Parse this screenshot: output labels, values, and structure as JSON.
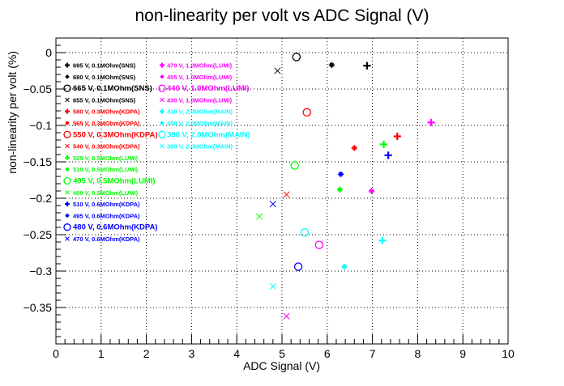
{
  "chart_data": {
    "type": "scatter",
    "title": "non-linearity per volt vs ADC Signal (V)",
    "xlabel": "ADC Signal (V)",
    "ylabel": "non-linearity per volt (%)",
    "xlim": [
      0,
      10
    ],
    "ylim": [
      -0.4,
      0.02
    ],
    "x_ticks": [
      "0",
      "1",
      "2",
      "3",
      "4",
      "5",
      "6",
      "7",
      "8",
      "9",
      "10"
    ],
    "y_ticks": [
      "0",
      "−0.05",
      "−0.1",
      "−0.15",
      "−0.2",
      "−0.25",
      "−0.3",
      "−0.35"
    ],
    "y_tick_values": [
      0,
      -0.05,
      -0.1,
      -0.15,
      -0.2,
      -0.25,
      -0.3,
      -0.35
    ],
    "grid": true,
    "series": [
      {
        "name": "695 V, 0.1MOhm(SNS)",
        "color": "#000000",
        "marker": "plus",
        "points": [
          [
            6.88,
            -0.018
          ]
        ]
      },
      {
        "name": "680 V, 0.1MOhm(SNS)",
        "color": "#000000",
        "marker": "star",
        "points": [
          [
            6.1,
            -0.017
          ]
        ]
      },
      {
        "name": "665 V, 0.1MOhm(SNS)",
        "color": "#000000",
        "marker": "circle",
        "points": [
          [
            5.32,
            -0.006
          ]
        ]
      },
      {
        "name": "655 V, 0.1MOhm(SNS)",
        "color": "#000000",
        "marker": "cross",
        "points": [
          [
            4.9,
            -0.025
          ]
        ]
      },
      {
        "name": "580 V, 0.3MOhm(KDPA)",
        "color": "#ff0000",
        "marker": "plus",
        "points": [
          [
            7.55,
            -0.115
          ]
        ]
      },
      {
        "name": "565 V, 0.3MOhm(KDPA)",
        "color": "#ff0000",
        "marker": "star",
        "points": [
          [
            6.6,
            -0.131
          ]
        ]
      },
      {
        "name": "550 V, 0.3MOhm(KDPA)",
        "color": "#ff0000",
        "marker": "circle",
        "points": [
          [
            5.55,
            -0.082
          ]
        ]
      },
      {
        "name": "540 V, 0.3MOhm(KDPA)",
        "color": "#ff0000",
        "marker": "cross",
        "points": [
          [
            5.1,
            -0.195
          ]
        ]
      },
      {
        "name": "525 V, 0.5MOhm(LUMI)",
        "color": "#00ff00",
        "marker": "plus",
        "points": [
          [
            7.25,
            -0.126
          ]
        ]
      },
      {
        "name": "510 V, 0.5MOhm(LUMI)",
        "color": "#00ff00",
        "marker": "star",
        "points": [
          [
            6.28,
            -0.188
          ]
        ]
      },
      {
        "name": "495 V, 0.5MOhm(LUMI)",
        "color": "#00ff00",
        "marker": "circle",
        "points": [
          [
            5.28,
            -0.155
          ]
        ]
      },
      {
        "name": "480 V, 0.5MOhm(LUMI)",
        "color": "#00ff00",
        "marker": "cross",
        "points": [
          [
            4.5,
            -0.225
          ]
        ]
      },
      {
        "name": "510 V, 0.6MOhm(KDPA)",
        "color": "#0000ff",
        "marker": "plus",
        "points": [
          [
            7.35,
            -0.141
          ]
        ]
      },
      {
        "name": "495 V, 0.6MOhm(KDPA)",
        "color": "#0000ff",
        "marker": "star",
        "points": [
          [
            6.3,
            -0.167
          ]
        ]
      },
      {
        "name": "480 V, 0.6MOhm(KDPA)",
        "color": "#0000ff",
        "marker": "circle",
        "points": [
          [
            5.36,
            -0.294
          ]
        ]
      },
      {
        "name": "470 V, 0.6MOhm(KDPA)",
        "color": "#0000ff",
        "marker": "cross",
        "points": [
          [
            4.8,
            -0.208
          ]
        ]
      },
      {
        "name": "470 V, 1.0MOhm(LUMI)",
        "color": "#ff00ff",
        "marker": "plus",
        "points": [
          [
            8.3,
            -0.096
          ]
        ]
      },
      {
        "name": "455 V, 1.0MOhm(LUMI)",
        "color": "#ff00ff",
        "marker": "star",
        "points": [
          [
            6.98,
            -0.19
          ]
        ]
      },
      {
        "name": "440 V, 1.0MOhm(LUMI)",
        "color": "#ff00ff",
        "marker": "circle",
        "points": [
          [
            5.82,
            -0.264
          ]
        ]
      },
      {
        "name": "430 V, 1.0MOhm(LUMI)",
        "color": "#ff00ff",
        "marker": "cross",
        "points": [
          [
            5.1,
            -0.362
          ]
        ]
      },
      {
        "name": "410 V, 2.0MOhm(MAIN)",
        "color": "#00ffff",
        "marker": "plus",
        "points": [
          [
            7.22,
            -0.258
          ]
        ]
      },
      {
        "name": "400 V, 2.0MOhm(MAIN)",
        "color": "#00ffff",
        "marker": "star",
        "points": [
          [
            6.38,
            -0.294
          ]
        ]
      },
      {
        "name": "390 V, 2.0MOhm(MAIN)",
        "color": "#00ffff",
        "marker": "circle",
        "points": [
          [
            5.5,
            -0.247
          ]
        ]
      },
      {
        "name": "380 V, 2.0MOhm(MAIN)",
        "color": "#00ffff",
        "marker": "cross",
        "points": [
          [
            4.8,
            -0.321
          ]
        ]
      }
    ],
    "legend_columns": [
      {
        "position": "top-left",
        "entries": [
          {
            "series": 0,
            "label": "695 V, 0.1MOhm(SNS)"
          },
          {
            "series": 1,
            "label": "680 V, 0.1MOhm(SNS)"
          },
          {
            "series": 2,
            "label": "665 V, 0.1MOhm(SNS)"
          },
          {
            "series": 3,
            "label": "655 V, 0.1MOhm(SNS)"
          },
          {
            "series": 4,
            "label": "580 V, 0.3MOhm(KDPA)"
          },
          {
            "series": 5,
            "label": "565 V, 0.3MOhm(KDPA)"
          },
          {
            "series": 6,
            "label": "550 V, 0.3MOhm(KDPA)"
          },
          {
            "series": 7,
            "label": "540 V, 0.3MOhm(KDPA)"
          },
          {
            "series": 8,
            "label": "525 V, 0.5MOhm(LUMI)"
          },
          {
            "series": 9,
            "label": "510 V, 0.5MOhm(LUMI)"
          },
          {
            "series": 10,
            "label": "495 V, 0.5MOhm(LUMI)"
          },
          {
            "series": 11,
            "label": "480 V, 0.5MOhm(LUMI)"
          },
          {
            "series": 12,
            "label": "510 V, 0.6MOhm(KDPA)"
          },
          {
            "series": 13,
            "label": "495 V, 0.6MOhm(KDPA)"
          },
          {
            "series": 14,
            "label": "480 V, 0.6MOhm(KDPA)"
          },
          {
            "series": 15,
            "label": "470 V, 0.6MOhm(KDPA)"
          }
        ]
      },
      {
        "position": "top-center",
        "entries": [
          {
            "series": 16,
            "label": "470 V, 1.0MOhm(LUMI)"
          },
          {
            "series": 17,
            "label": "455 V, 1.0MOhm(LUMI)"
          },
          {
            "series": 18,
            "label": "440 V, 1.0MOhm(LUMI)"
          },
          {
            "series": 19,
            "label": "430 V, 1.0MOhm(LUMI)"
          },
          {
            "series": 20,
            "label": "410 V, 2.0MOhm(MAIN)"
          },
          {
            "series": 21,
            "label": "400 V, 2.0MOhm(MAIN)"
          },
          {
            "series": 22,
            "label": "390 V, 2.0MOhm(MAIN)"
          },
          {
            "series": 23,
            "label": "380 V, 2.0MOhm(MAIN)"
          }
        ]
      }
    ]
  }
}
